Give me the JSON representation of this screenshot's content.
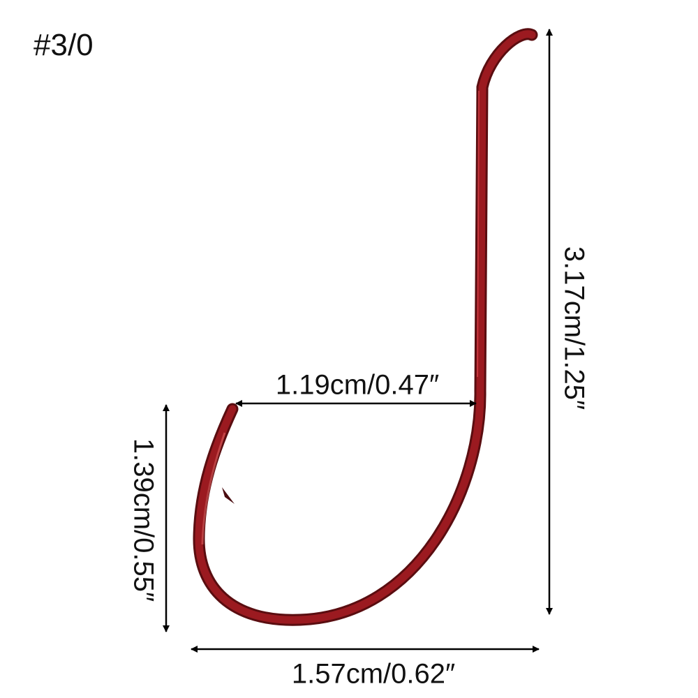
{
  "size_label": "#3/0",
  "dimensions": {
    "shank_length": "3.17cm/1.25″",
    "gap_width": "1.19cm/0.47″",
    "bend_height": "1.39cm/0.55″",
    "total_width": "1.57cm/0.62″"
  },
  "colors": {
    "hook": "#9b1a20",
    "hook_shadow": "#5a0d10",
    "highlight": "#e04a4a",
    "arrow": "#000000"
  }
}
